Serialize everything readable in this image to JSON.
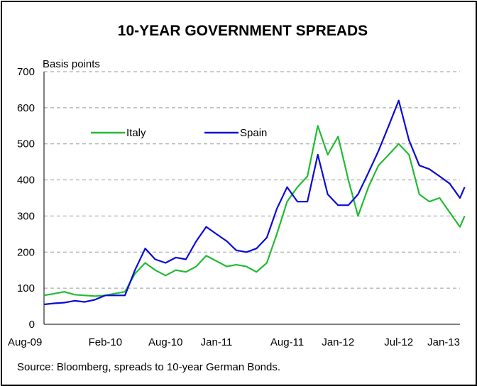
{
  "chart_data": {
    "type": "line",
    "title": "10-YEAR GOVERNMENT SPREADS",
    "ylabel": "Basis points",
    "ylim": [
      0,
      700
    ],
    "yticks": [
      "0",
      "100",
      "200",
      "300",
      "400",
      "500",
      "600",
      "700"
    ],
    "xticks": [
      "Aug-09",
      "Feb-10",
      "Aug-10",
      "Jan-11",
      "Aug-11",
      "Jan-12",
      "Jul-12",
      "Jan-13"
    ],
    "xtick_dates": [
      "2009-08-01",
      "2010-02-01",
      "2010-08-01",
      "2011-01-01",
      "2011-08-01",
      "2012-01-01",
      "2012-07-01",
      "2013-01-01"
    ],
    "grid": "horizontal-dashed",
    "legend_position": "top-left",
    "source": "Source: Bloomberg, spreads to 10-year German Bonds.",
    "colors": {
      "Italy": "#22bb33",
      "Spain": "#0a0ad8"
    },
    "series": [
      {
        "name": "Italy",
        "points": [
          [
            "2009-08-01",
            80
          ],
          [
            "2009-09-01",
            85
          ],
          [
            "2009-10-01",
            90
          ],
          [
            "2009-11-01",
            82
          ],
          [
            "2009-12-01",
            80
          ],
          [
            "2010-01-01",
            78
          ],
          [
            "2010-02-01",
            80
          ],
          [
            "2010-03-01",
            85
          ],
          [
            "2010-04-01",
            90
          ],
          [
            "2010-05-01",
            140
          ],
          [
            "2010-06-01",
            170
          ],
          [
            "2010-07-01",
            150
          ],
          [
            "2010-08-01",
            135
          ],
          [
            "2010-09-01",
            150
          ],
          [
            "2010-10-01",
            145
          ],
          [
            "2010-11-01",
            160
          ],
          [
            "2010-12-01",
            190
          ],
          [
            "2011-01-01",
            175
          ],
          [
            "2011-02-01",
            160
          ],
          [
            "2011-03-01",
            165
          ],
          [
            "2011-04-01",
            160
          ],
          [
            "2011-05-01",
            145
          ],
          [
            "2011-06-01",
            170
          ],
          [
            "2011-07-01",
            250
          ],
          [
            "2011-08-01",
            340
          ],
          [
            "2011-09-01",
            380
          ],
          [
            "2011-10-01",
            410
          ],
          [
            "2011-11-01",
            550
          ],
          [
            "2011-12-01",
            470
          ],
          [
            "2012-01-01",
            520
          ],
          [
            "2012-02-01",
            400
          ],
          [
            "2012-03-01",
            300
          ],
          [
            "2012-04-01",
            380
          ],
          [
            "2012-05-01",
            440
          ],
          [
            "2012-06-01",
            470
          ],
          [
            "2012-07-01",
            500
          ],
          [
            "2012-08-01",
            470
          ],
          [
            "2012-09-01",
            360
          ],
          [
            "2012-10-01",
            340
          ],
          [
            "2012-11-01",
            350
          ],
          [
            "2012-12-01",
            310
          ],
          [
            "2013-01-01",
            270
          ],
          [
            "2013-01-15",
            300
          ]
        ]
      },
      {
        "name": "Spain",
        "points": [
          [
            "2009-08-01",
            55
          ],
          [
            "2009-09-01",
            58
          ],
          [
            "2009-10-01",
            60
          ],
          [
            "2009-11-01",
            65
          ],
          [
            "2009-12-01",
            62
          ],
          [
            "2010-01-01",
            68
          ],
          [
            "2010-02-01",
            80
          ],
          [
            "2010-03-01",
            80
          ],
          [
            "2010-04-01",
            80
          ],
          [
            "2010-05-01",
            150
          ],
          [
            "2010-06-01",
            210
          ],
          [
            "2010-07-01",
            180
          ],
          [
            "2010-08-01",
            170
          ],
          [
            "2010-09-01",
            185
          ],
          [
            "2010-10-01",
            180
          ],
          [
            "2010-11-01",
            230
          ],
          [
            "2010-12-01",
            270
          ],
          [
            "2011-01-01",
            250
          ],
          [
            "2011-02-01",
            230
          ],
          [
            "2011-03-01",
            205
          ],
          [
            "2011-04-01",
            200
          ],
          [
            "2011-05-01",
            210
          ],
          [
            "2011-06-01",
            240
          ],
          [
            "2011-07-01",
            320
          ],
          [
            "2011-08-01",
            380
          ],
          [
            "2011-09-01",
            340
          ],
          [
            "2011-10-01",
            340
          ],
          [
            "2011-11-01",
            470
          ],
          [
            "2011-12-01",
            360
          ],
          [
            "2012-01-01",
            330
          ],
          [
            "2012-02-01",
            330
          ],
          [
            "2012-03-01",
            360
          ],
          [
            "2012-04-01",
            420
          ],
          [
            "2012-05-01",
            480
          ],
          [
            "2012-06-01",
            550
          ],
          [
            "2012-07-01",
            620
          ],
          [
            "2012-08-01",
            510
          ],
          [
            "2012-09-01",
            440
          ],
          [
            "2012-10-01",
            430
          ],
          [
            "2012-11-01",
            410
          ],
          [
            "2012-12-01",
            390
          ],
          [
            "2013-01-01",
            350
          ],
          [
            "2013-01-15",
            380
          ]
        ]
      }
    ]
  }
}
